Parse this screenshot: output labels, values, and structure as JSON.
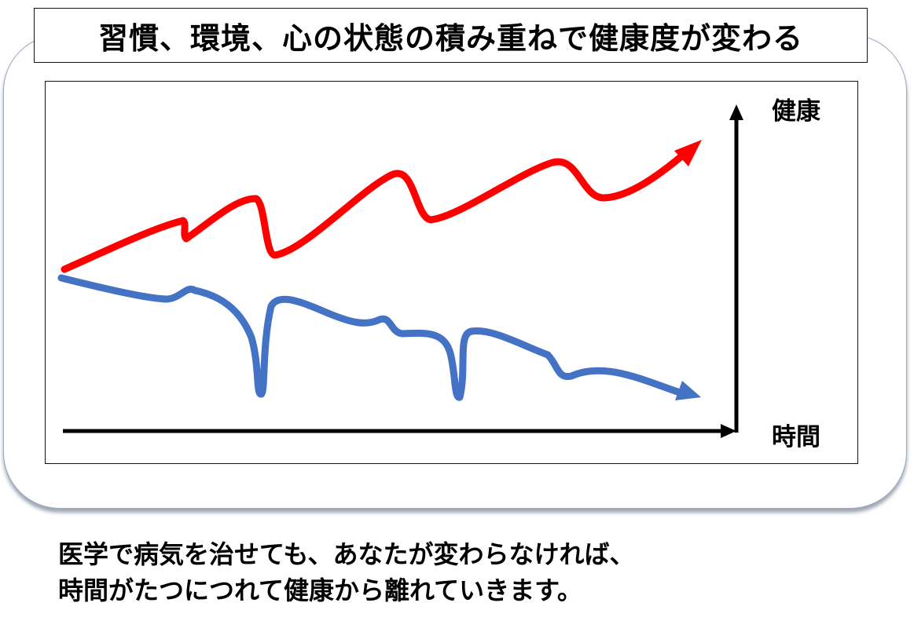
{
  "title": "習慣、環境、心の状態の積み重ねで健康度が変わる",
  "chart_data": {
    "type": "line",
    "ylabel": "健康",
    "xlabel": "時間",
    "series": [
      {
        "color": "#ff0000"
      },
      {
        "color": "#4472c4"
      }
    ]
  },
  "caption": {
    "line1": "医学で病気を治せても、あなたが変わらなければ、",
    "line2": "時間がたつにつれて健康から離れていきます。"
  }
}
